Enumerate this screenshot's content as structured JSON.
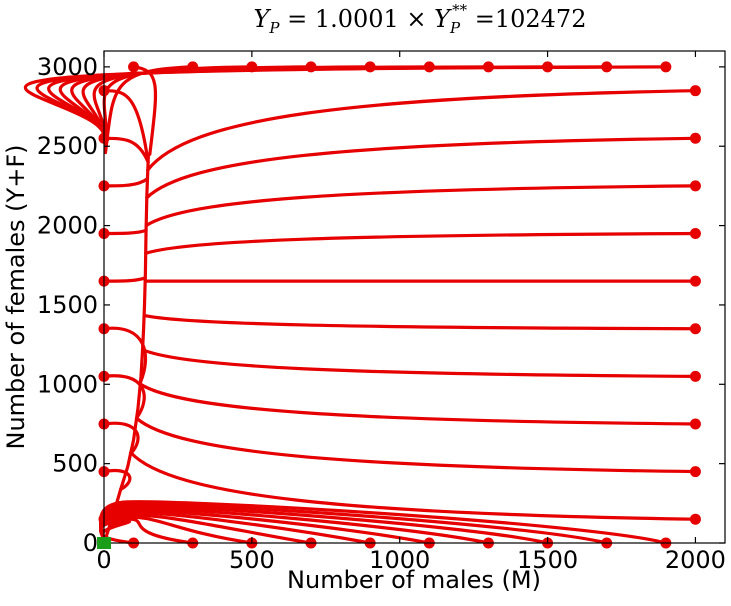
{
  "chart_data": {
    "type": "line",
    "title_parts": {
      "lhs": "Y",
      "lhs_sub": "P",
      "eq_coef": " = 1.0001 × ",
      "rhs": "Y",
      "rhs_sub": "P",
      "rhs_sup": "**",
      "tail": " =102472"
    },
    "xlabel": "Number of males (M)",
    "ylabel": "Number of females (Y+F)",
    "xlim": [
      0,
      2100
    ],
    "ylim": [
      0,
      3100
    ],
    "xticks": [
      0,
      500,
      1000,
      1500,
      2000
    ],
    "yticks": [
      0,
      500,
      1000,
      1500,
      2000,
      2500,
      3000
    ],
    "xtick_labels": [
      "0",
      "500",
      "1000",
      "1500",
      "2000"
    ],
    "ytick_labels": [
      "0",
      "500",
      "1000",
      "1500",
      "2000",
      "2500",
      "3000"
    ],
    "grid": false,
    "line_color": "#e60000",
    "equilibrium_color": "#1a9e1a",
    "equilibrium_point": [
      0,
      0
    ],
    "trajectory_starts": {
      "left_edge": [
        [
          0,
          150
        ],
        [
          0,
          450
        ],
        [
          0,
          750
        ],
        [
          0,
          1050
        ],
        [
          0,
          1350
        ],
        [
          0,
          1650
        ],
        [
          0,
          1950
        ],
        [
          0,
          2250
        ],
        [
          0,
          2550
        ],
        [
          0,
          2850
        ]
      ],
      "top_edge": [
        [
          100,
          3000
        ],
        [
          300,
          3000
        ],
        [
          500,
          3000
        ],
        [
          700,
          3000
        ],
        [
          900,
          3000
        ],
        [
          1100,
          3000
        ],
        [
          1300,
          3000
        ],
        [
          1500,
          3000
        ],
        [
          1700,
          3000
        ],
        [
          1900,
          3000
        ]
      ],
      "right_edge": [
        [
          2000,
          2850
        ],
        [
          2000,
          2550
        ],
        [
          2000,
          2250
        ],
        [
          2000,
          1950
        ],
        [
          2000,
          1650
        ],
        [
          2000,
          1350
        ],
        [
          2000,
          1050
        ],
        [
          2000,
          750
        ],
        [
          2000,
          450
        ],
        [
          2000,
          150
        ]
      ],
      "bottom_edge": [
        [
          100,
          0
        ],
        [
          300,
          0
        ],
        [
          500,
          0
        ],
        [
          700,
          0
        ],
        [
          900,
          0
        ],
        [
          1100,
          0
        ],
        [
          1300,
          0
        ],
        [
          1500,
          0
        ],
        [
          1700,
          0
        ],
        [
          1900,
          0
        ]
      ]
    },
    "spine": [
      [
        150,
        2450
      ],
      [
        145,
        2200
      ],
      [
        142,
        1950
      ],
      [
        140,
        1700
      ],
      [
        137,
        1500
      ],
      [
        134,
        1350
      ],
      [
        130,
        1200
      ],
      [
        125,
        1050
      ],
      [
        115,
        850
      ],
      [
        100,
        650
      ],
      [
        80,
        480
      ],
      [
        55,
        330
      ],
      [
        35,
        200
      ],
      [
        18,
        100
      ],
      [
        0,
        0
      ]
    ]
  }
}
